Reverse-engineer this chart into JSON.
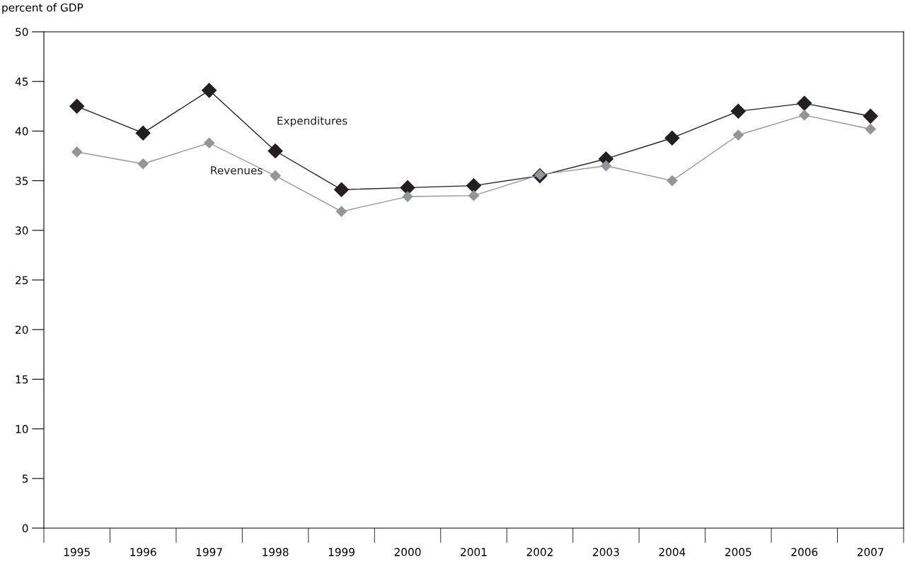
{
  "chart_data": {
    "type": "line",
    "ylabel": "percent of GDP",
    "categories": [
      "1995",
      "1996",
      "1997",
      "1998",
      "1999",
      "2000",
      "2001",
      "2002",
      "2003",
      "2004",
      "2005",
      "2006",
      "2007"
    ],
    "series": [
      {
        "name": "Expenditures",
        "color": "#231f20",
        "values": [
          42.5,
          39.8,
          44.1,
          38.0,
          34.1,
          34.3,
          34.5,
          35.5,
          37.2,
          39.3,
          42.0,
          42.8,
          41.5
        ]
      },
      {
        "name": "Revenues",
        "color": "#939598",
        "values": [
          37.9,
          36.7,
          38.8,
          35.5,
          31.9,
          33.4,
          33.5,
          35.6,
          36.5,
          35.0,
          39.6,
          41.6,
          40.2
        ]
      }
    ],
    "ylim": [
      0,
      50
    ],
    "yticks": [
      0,
      5,
      10,
      15,
      20,
      25,
      30,
      35,
      40,
      45,
      50
    ],
    "marker": "diamond",
    "line_style": "solid",
    "grid": false,
    "legend": false
  }
}
